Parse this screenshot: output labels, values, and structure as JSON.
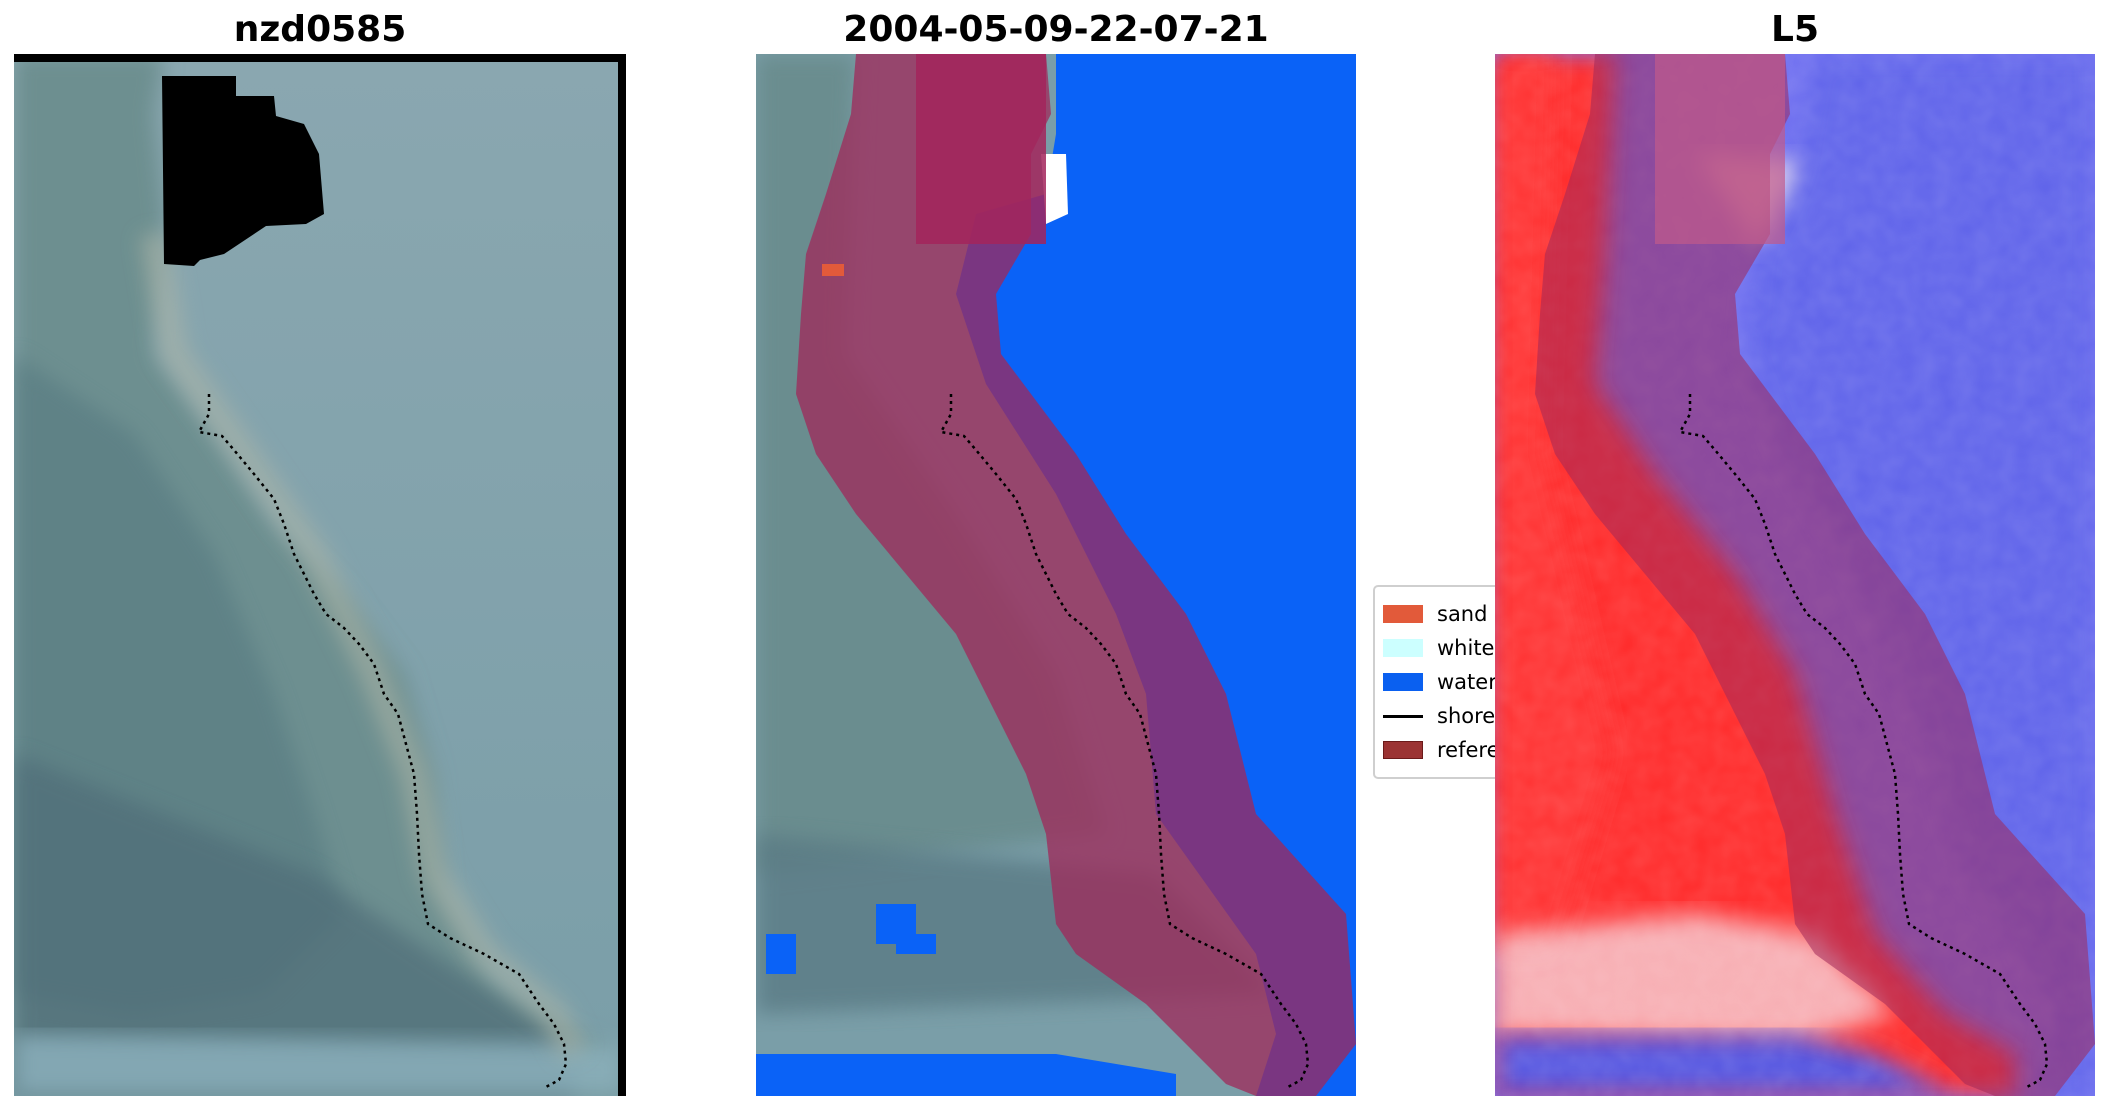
{
  "panels": [
    {
      "title": "nzd0585"
    },
    {
      "title": "2004-05-09-22-07-21"
    },
    {
      "title": "L5"
    }
  ],
  "legend": {
    "items": [
      {
        "label": "sand",
        "color": "#e25a3a",
        "kind": "patch"
      },
      {
        "label": "white-water",
        "color": "#ccffff",
        "kind": "patch"
      },
      {
        "label": "water",
        "color": "#0a60f0",
        "kind": "patch"
      },
      {
        "label": "shoreline",
        "color": "#000000",
        "kind": "line"
      },
      {
        "label": "reference shoreline buffer",
        "color": "#9b3333",
        "kind": "patch"
      }
    ]
  },
  "colors": {
    "water": "#0a62f7",
    "buffer": "#a0285a",
    "land": "#7c9aa0",
    "sea": "#7aa3ac"
  }
}
